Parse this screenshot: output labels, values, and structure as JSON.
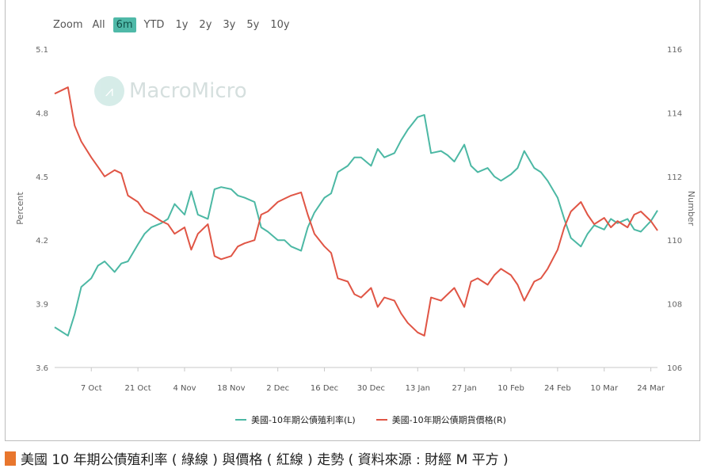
{
  "zoom": {
    "label": "Zoom",
    "buttons": [
      "All",
      "6m",
      "YTD",
      "1y",
      "2y",
      "3y",
      "5y",
      "10y"
    ],
    "active": "6m"
  },
  "watermark": {
    "text": "MacroMicro",
    "icon": "macromicro-logo-icon"
  },
  "caption": {
    "text": "美國 10 年期公債殖利率 ( 綠線 ) 與價格 ( 紅線 ) 走勢 ( 資料來源 : 財經 M 平方 )",
    "marker_color": "#e8762d"
  },
  "chart_data": {
    "type": "line",
    "left_axis": {
      "label": "Percent",
      "ticks": [
        3.6,
        3.9,
        4.2,
        4.5,
        4.8,
        5.1
      ],
      "range": [
        3.6,
        5.1
      ]
    },
    "right_axis": {
      "label": "Number",
      "ticks": [
        106,
        108,
        110,
        112,
        114,
        116
      ],
      "range": [
        106,
        116
      ]
    },
    "x_ticks": [
      "7 Oct",
      "21 Oct",
      "4 Nov",
      "18 Nov",
      "2 Dec",
      "16 Dec",
      "30 Dec",
      "13 Jan",
      "27 Jan",
      "10 Feb",
      "24 Feb",
      "10 Mar",
      "24 Mar"
    ],
    "x_dates": [
      "2024-09-26",
      "2024-09-30",
      "2024-10-02",
      "2024-10-04",
      "2024-10-07",
      "2024-10-09",
      "2024-10-11",
      "2024-10-14",
      "2024-10-16",
      "2024-10-18",
      "2024-10-21",
      "2024-10-23",
      "2024-10-25",
      "2024-10-28",
      "2024-10-30",
      "2024-11-01",
      "2024-11-04",
      "2024-11-06",
      "2024-11-08",
      "2024-11-11",
      "2024-11-13",
      "2024-11-15",
      "2024-11-18",
      "2024-11-20",
      "2024-11-22",
      "2024-11-25",
      "2024-11-27",
      "2024-11-29",
      "2024-12-02",
      "2024-12-04",
      "2024-12-06",
      "2024-12-09",
      "2024-12-11",
      "2024-12-13",
      "2024-12-16",
      "2024-12-18",
      "2024-12-20",
      "2024-12-23",
      "2024-12-25",
      "2024-12-27",
      "2024-12-30",
      "2025-01-01",
      "2025-01-03",
      "2025-01-06",
      "2025-01-08",
      "2025-01-10",
      "2025-01-13",
      "2025-01-15",
      "2025-01-17",
      "2025-01-20",
      "2025-01-22",
      "2025-01-24",
      "2025-01-27",
      "2025-01-29",
      "2025-01-31",
      "2025-02-03",
      "2025-02-05",
      "2025-02-07",
      "2025-02-10",
      "2025-02-12",
      "2025-02-14",
      "2025-02-17",
      "2025-02-19",
      "2025-02-21",
      "2025-02-24",
      "2025-02-26",
      "2025-02-28",
      "2025-03-03",
      "2025-03-05",
      "2025-03-07",
      "2025-03-10",
      "2025-03-12",
      "2025-03-14",
      "2025-03-17",
      "2025-03-19",
      "2025-03-21",
      "2025-03-24",
      "2025-03-26"
    ],
    "series": [
      {
        "name": "美國-10年期公債殖利率(L)",
        "axis": "left",
        "color": "#4cb8a4",
        "values": [
          3.79,
          3.75,
          3.85,
          3.98,
          4.02,
          4.08,
          4.1,
          4.05,
          4.09,
          4.1,
          4.18,
          4.23,
          4.26,
          4.28,
          4.3,
          4.37,
          4.32,
          4.43,
          4.32,
          4.3,
          4.44,
          4.45,
          4.44,
          4.41,
          4.4,
          4.38,
          4.26,
          4.24,
          4.2,
          4.2,
          4.17,
          4.15,
          4.26,
          4.33,
          4.4,
          4.42,
          4.52,
          4.55,
          4.59,
          4.59,
          4.55,
          4.63,
          4.59,
          4.61,
          4.67,
          4.72,
          4.78,
          4.79,
          4.61,
          4.62,
          4.6,
          4.57,
          4.65,
          4.55,
          4.52,
          4.54,
          4.5,
          4.48,
          4.51,
          4.54,
          4.62,
          4.54,
          4.52,
          4.48,
          4.4,
          4.3,
          4.21,
          4.17,
          4.23,
          4.27,
          4.25,
          4.3,
          4.28,
          4.3,
          4.25,
          4.24,
          4.29,
          4.34
        ]
      },
      {
        "name": "美國-10年期公債期貨價格(R)",
        "axis": "right",
        "color": "#e05545",
        "values": [
          114.6,
          114.8,
          113.6,
          113.1,
          112.6,
          112.3,
          112.0,
          112.2,
          112.1,
          111.4,
          111.2,
          110.9,
          110.8,
          110.6,
          110.5,
          110.2,
          110.4,
          109.7,
          110.2,
          110.5,
          109.5,
          109.4,
          109.5,
          109.8,
          109.9,
          110.0,
          110.8,
          110.9,
          111.2,
          111.3,
          111.4,
          111.5,
          110.8,
          110.2,
          109.8,
          109.6,
          108.8,
          108.7,
          108.3,
          108.2,
          108.5,
          107.9,
          108.2,
          108.1,
          107.7,
          107.4,
          107.1,
          107.0,
          108.2,
          108.1,
          108.3,
          108.5,
          107.9,
          108.7,
          108.8,
          108.6,
          108.9,
          109.1,
          108.9,
          108.6,
          108.1,
          108.7,
          108.8,
          109.1,
          109.7,
          110.4,
          110.9,
          111.2,
          110.8,
          110.5,
          110.7,
          110.4,
          110.6,
          110.4,
          110.8,
          110.9,
          110.6,
          110.3
        ]
      }
    ],
    "legend_position": "bottom-center",
    "grid": false
  }
}
